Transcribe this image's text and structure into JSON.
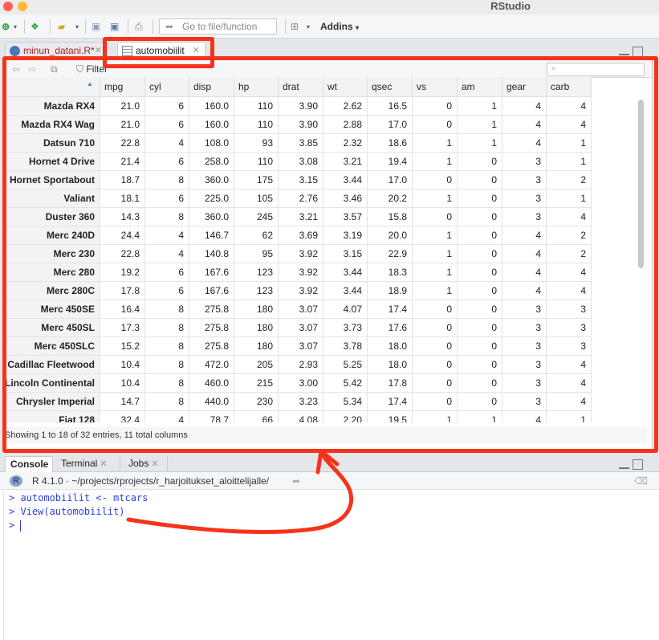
{
  "app": {
    "title": "RStudio"
  },
  "toolbar": {
    "goto_placeholder": "Go to file/function",
    "addins_label": "Addins"
  },
  "source_tabs": [
    {
      "label": "minun_datani.R*"
    },
    {
      "label": "automobiilit"
    }
  ],
  "viewer": {
    "filter_label": "Filter",
    "columns": [
      "",
      "mpg",
      "cyl",
      "disp",
      "hp",
      "drat",
      "wt",
      "qsec",
      "vs",
      "am",
      "gear",
      "carb"
    ],
    "rows": [
      [
        "Mazda RX4",
        "21.0",
        "6",
        "160.0",
        "110",
        "3.90",
        "2.62",
        "16.5",
        "0",
        "1",
        "4",
        "4"
      ],
      [
        "Mazda RX4 Wag",
        "21.0",
        "6",
        "160.0",
        "110",
        "3.90",
        "2.88",
        "17.0",
        "0",
        "1",
        "4",
        "4"
      ],
      [
        "Datsun 710",
        "22.8",
        "4",
        "108.0",
        "93",
        "3.85",
        "2.32",
        "18.6",
        "1",
        "1",
        "4",
        "1"
      ],
      [
        "Hornet 4 Drive",
        "21.4",
        "6",
        "258.0",
        "110",
        "3.08",
        "3.21",
        "19.4",
        "1",
        "0",
        "3",
        "1"
      ],
      [
        "Hornet Sportabout",
        "18.7",
        "8",
        "360.0",
        "175",
        "3.15",
        "3.44",
        "17.0",
        "0",
        "0",
        "3",
        "2"
      ],
      [
        "Valiant",
        "18.1",
        "6",
        "225.0",
        "105",
        "2.76",
        "3.46",
        "20.2",
        "1",
        "0",
        "3",
        "1"
      ],
      [
        "Duster 360",
        "14.3",
        "8",
        "360.0",
        "245",
        "3.21",
        "3.57",
        "15.8",
        "0",
        "0",
        "3",
        "4"
      ],
      [
        "Merc 240D",
        "24.4",
        "4",
        "146.7",
        "62",
        "3.69",
        "3.19",
        "20.0",
        "1",
        "0",
        "4",
        "2"
      ],
      [
        "Merc 230",
        "22.8",
        "4",
        "140.8",
        "95",
        "3.92",
        "3.15",
        "22.9",
        "1",
        "0",
        "4",
        "2"
      ],
      [
        "Merc 280",
        "19.2",
        "6",
        "167.6",
        "123",
        "3.92",
        "3.44",
        "18.3",
        "1",
        "0",
        "4",
        "4"
      ],
      [
        "Merc 280C",
        "17.8",
        "6",
        "167.6",
        "123",
        "3.92",
        "3.44",
        "18.9",
        "1",
        "0",
        "4",
        "4"
      ],
      [
        "Merc 450SE",
        "16.4",
        "8",
        "275.8",
        "180",
        "3.07",
        "4.07",
        "17.4",
        "0",
        "0",
        "3",
        "3"
      ],
      [
        "Merc 450SL",
        "17.3",
        "8",
        "275.8",
        "180",
        "3.07",
        "3.73",
        "17.6",
        "0",
        "0",
        "3",
        "3"
      ],
      [
        "Merc 450SLC",
        "15.2",
        "8",
        "275.8",
        "180",
        "3.07",
        "3.78",
        "18.0",
        "0",
        "0",
        "3",
        "3"
      ],
      [
        "Cadillac Fleetwood",
        "10.4",
        "8",
        "472.0",
        "205",
        "2.93",
        "5.25",
        "18.0",
        "0",
        "0",
        "3",
        "4"
      ],
      [
        "Lincoln Continental",
        "10.4",
        "8",
        "460.0",
        "215",
        "3.00",
        "5.42",
        "17.8",
        "0",
        "0",
        "3",
        "4"
      ],
      [
        "Chrysler Imperial",
        "14.7",
        "8",
        "440.0",
        "230",
        "3.23",
        "5.34",
        "17.4",
        "0",
        "0",
        "3",
        "4"
      ],
      [
        "Fiat 128",
        "32.4",
        "4",
        "78.7",
        "66",
        "4.08",
        "2.20",
        "19.5",
        "1",
        "1",
        "4",
        "1"
      ]
    ],
    "status": "Showing 1 to 18 of 32 entries, 11 total columns"
  },
  "console": {
    "tabs": [
      {
        "label": "Console"
      },
      {
        "label": "Terminal"
      },
      {
        "label": "Jobs"
      }
    ],
    "header_path": "R 4.1.0 · ~/projects/rprojects/r_harjoitukset_aloittelijalle/",
    "lines": [
      "> automobiilit <- mtcars",
      "> View(automobiilit)",
      "> "
    ]
  },
  "colors": {
    "annotation": "#f7321b",
    "console_text": "#2d3fe0"
  }
}
